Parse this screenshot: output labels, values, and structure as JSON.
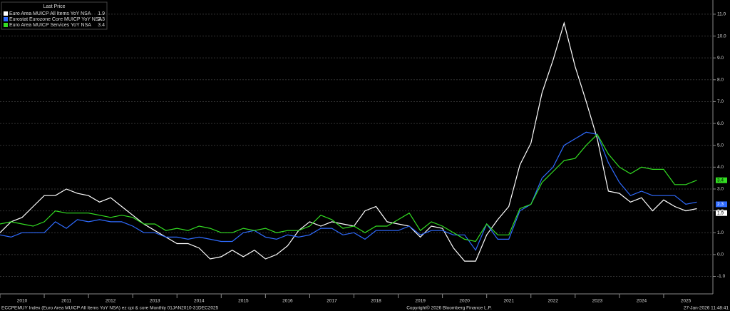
{
  "chart_data": {
    "type": "line",
    "legend_title": "Last Price",
    "source": "ECCPEMUY Index (Euro Area MUICP All Items YoY NSA) ez cpi & core Monthly 01JAN2010-31DEC2025",
    "copyright": "Copyright© 2026 Bloomberg Finance L.P.",
    "timestamp": "27-Jan-2026 11:48:41",
    "grid": true,
    "legend": "top-left",
    "x": [
      2010,
      2010.25,
      2010.5,
      2010.75,
      2011,
      2011.25,
      2011.5,
      2011.75,
      2012,
      2012.25,
      2012.5,
      2012.75,
      2013,
      2013.25,
      2013.5,
      2013.75,
      2014,
      2014.25,
      2014.5,
      2014.75,
      2015,
      2015.25,
      2015.5,
      2015.75,
      2016,
      2016.25,
      2016.5,
      2016.75,
      2017,
      2017.25,
      2017.5,
      2017.75,
      2018,
      2018.25,
      2018.5,
      2018.75,
      2019,
      2019.25,
      2019.5,
      2019.75,
      2020,
      2020.25,
      2020.5,
      2020.75,
      2021,
      2021.25,
      2021.5,
      2021.75,
      2022,
      2022.25,
      2022.5,
      2022.75,
      2023,
      2023.25,
      2023.5,
      2023.75,
      2024,
      2024.25,
      2024.5,
      2024.75,
      2025,
      2025.25,
      2025.5,
      2025.75
    ],
    "xlim": [
      2010,
      2026
    ],
    "xticks": [
      {
        "value": 2010,
        "label": "2010"
      },
      {
        "value": 2011,
        "label": "2011"
      },
      {
        "value": 2012,
        "label": "2012"
      },
      {
        "value": 2013,
        "label": "2013"
      },
      {
        "value": 2014,
        "label": "2014"
      },
      {
        "value": 2015,
        "label": "2015"
      },
      {
        "value": 2016,
        "label": "2016"
      },
      {
        "value": 2017,
        "label": "2017"
      },
      {
        "value": 2018,
        "label": "2018"
      },
      {
        "value": 2019,
        "label": "2019"
      },
      {
        "value": 2020,
        "label": "2020"
      },
      {
        "value": 2021,
        "label": "2021"
      },
      {
        "value": 2022,
        "label": "2022"
      },
      {
        "value": 2023,
        "label": "2023"
      },
      {
        "value": 2024,
        "label": "2024"
      },
      {
        "value": 2025,
        "label": "2025"
      }
    ],
    "ylim": [
      -1.8,
      11.65
    ],
    "yticks": [
      {
        "value": -1,
        "label": "-1.0"
      },
      {
        "value": 0,
        "label": "0.0"
      },
      {
        "value": 1,
        "label": "1.0"
      },
      {
        "value": 2,
        "label": "2.0"
      },
      {
        "value": 3,
        "label": "3.0"
      },
      {
        "value": 4,
        "label": "4.0"
      },
      {
        "value": 5,
        "label": "5.0"
      },
      {
        "value": 6,
        "label": "6.0"
      },
      {
        "value": 7,
        "label": "7.0"
      },
      {
        "value": 8,
        "label": "8.0"
      },
      {
        "value": 9,
        "label": "9.0"
      },
      {
        "value": 10,
        "label": "10.0"
      },
      {
        "value": 11,
        "label": "11.0"
      }
    ],
    "series": [
      {
        "name": "Euro Area MUICP All Items YoY NSA",
        "color": "#ffffff",
        "text_color": "#000000",
        "last_value": 1.9,
        "values": [
          1.0,
          1.5,
          1.7,
          2.2,
          2.7,
          2.7,
          3.0,
          2.8,
          2.7,
          2.4,
          2.6,
          2.2,
          1.8,
          1.4,
          1.1,
          0.8,
          0.5,
          0.5,
          0.3,
          -0.2,
          -0.1,
          0.2,
          -0.1,
          0.2,
          -0.2,
          0.0,
          0.4,
          1.1,
          1.5,
          1.3,
          1.5,
          1.4,
          1.3,
          2.0,
          2.2,
          1.5,
          1.4,
          1.3,
          0.8,
          1.3,
          1.2,
          0.3,
          -0.3,
          -0.3,
          0.9,
          1.6,
          2.2,
          4.1,
          5.1,
          7.4,
          8.9,
          10.6,
          8.6,
          7.0,
          5.3,
          2.9,
          2.8,
          2.4,
          2.6,
          2.0,
          2.5,
          2.2,
          2.0,
          2.1
        ]
      },
      {
        "name": "Eurostat Eurozone Core MUICP YoY NSA",
        "color": "#2f6bff",
        "text_color": "#ffffff",
        "last_value": 2.3,
        "values": [
          0.9,
          0.8,
          1.0,
          1.0,
          1.0,
          1.5,
          1.2,
          1.6,
          1.5,
          1.6,
          1.5,
          1.5,
          1.3,
          1.0,
          1.0,
          0.8,
          0.8,
          0.7,
          0.8,
          0.7,
          0.6,
          0.6,
          1.0,
          1.1,
          0.8,
          0.7,
          0.9,
          0.8,
          0.9,
          1.2,
          1.2,
          0.9,
          1.0,
          0.7,
          1.1,
          1.1,
          1.1,
          1.3,
          0.9,
          1.1,
          1.1,
          0.9,
          0.9,
          0.2,
          1.4,
          0.7,
          0.7,
          2.0,
          2.3,
          3.5,
          4.0,
          5.0,
          5.3,
          5.6,
          5.5,
          4.2,
          3.3,
          2.7,
          2.9,
          2.7,
          2.7,
          2.7,
          2.3,
          2.4
        ]
      },
      {
        "name": "Euro Area MUICP Services YoY NSA",
        "color": "#33dd22",
        "text_color": "#000000",
        "last_value": 3.4,
        "values": [
          1.4,
          1.5,
          1.4,
          1.3,
          1.5,
          2.0,
          1.9,
          1.9,
          1.9,
          1.8,
          1.7,
          1.8,
          1.7,
          1.4,
          1.4,
          1.1,
          1.2,
          1.1,
          1.3,
          1.2,
          1.0,
          1.0,
          1.2,
          1.1,
          1.2,
          1.0,
          1.1,
          1.1,
          1.3,
          1.8,
          1.6,
          1.2,
          1.3,
          1.0,
          1.3,
          1.3,
          1.6,
          1.9,
          1.1,
          1.5,
          1.3,
          1.0,
          0.7,
          0.6,
          1.4,
          0.9,
          0.9,
          2.1,
          2.3,
          3.3,
          3.8,
          4.3,
          4.4,
          5.0,
          5.5,
          4.6,
          4.0,
          3.7,
          4.0,
          3.9,
          3.9,
          3.2,
          3.2,
          3.4
        ]
      }
    ]
  }
}
